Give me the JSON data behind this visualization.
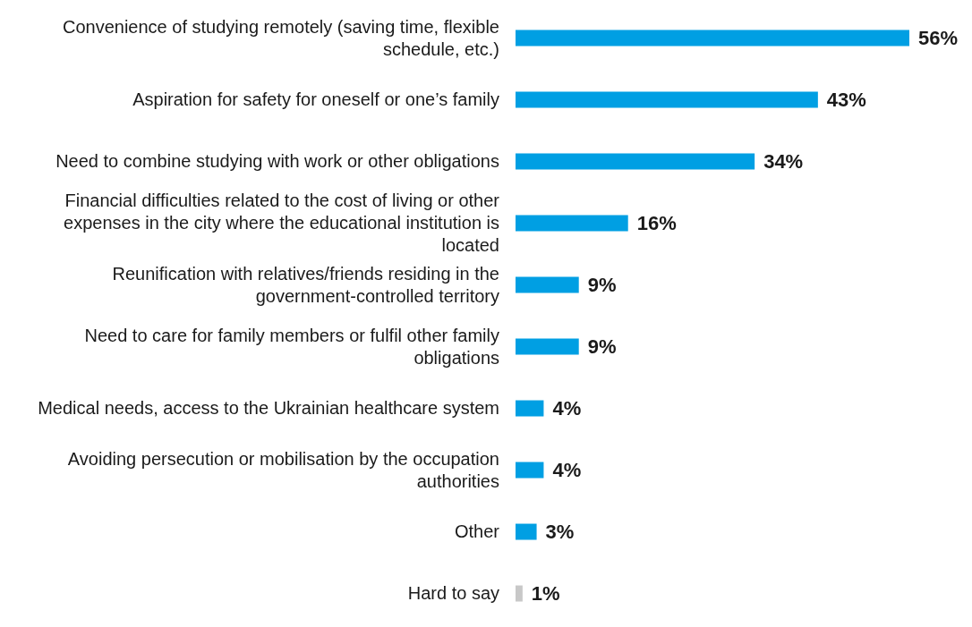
{
  "chart_data": {
    "type": "bar",
    "orientation": "horizontal",
    "categories": [
      "Convenience of studying remotely (saving time, flexible schedule, etc.)",
      "Aspiration for safety for oneself or one’s family",
      "Need to combine studying with work or other obligations",
      "Financial difficulties related to the cost of living or other expenses in the city where the educational institution is located",
      "Reunification with relatives/friends residing in the government-controlled territory",
      "Need to care for family members or fulfil other family obligations",
      "Medical needs, access to the Ukrainian healthcare system",
      "Avoiding persecution or mobilisation by the occupation authorities",
      "Other",
      "Hard to say"
    ],
    "values": [
      56,
      43,
      34,
      16,
      9,
      9,
      4,
      4,
      3,
      1
    ],
    "colors": [
      "#009fe3",
      "#009fe3",
      "#009fe3",
      "#009fe3",
      "#009fe3",
      "#009fe3",
      "#009fe3",
      "#009fe3",
      "#009fe3",
      "#c8c8c8"
    ],
    "value_labels": [
      "56%",
      "43%",
      "34%",
      "16%",
      "9%",
      "9%",
      "4%",
      "4%",
      "3%",
      "1%"
    ],
    "tick_labels": "y"
  }
}
